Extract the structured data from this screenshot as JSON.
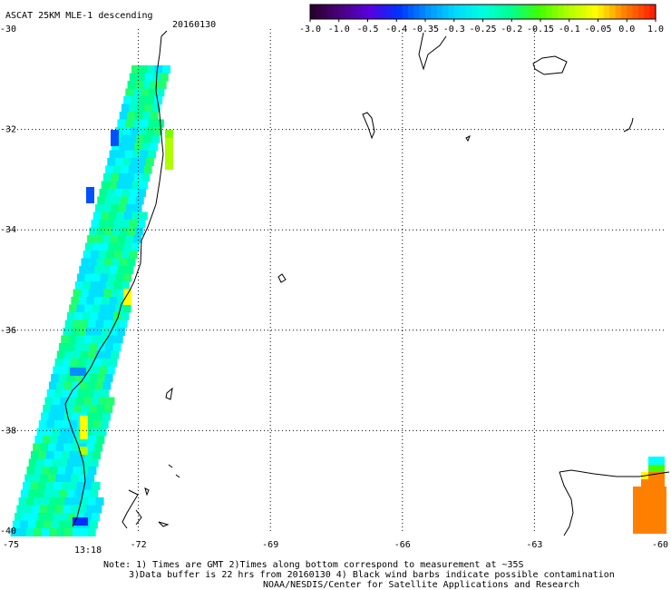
{
  "header": {
    "title": "ASCAT 25KM MLE-1 descending",
    "date": "20160130"
  },
  "colorbar": {
    "labels": [
      "-3.0",
      "-1.0",
      "-0.5",
      "-0.4",
      "-0.35",
      "-0.3",
      "-0.25",
      "-0.2",
      "-0.15",
      "-0.1",
      "-0.05",
      "0.0",
      "1.0"
    ],
    "colors": [
      "#2a0030",
      "#4b0080",
      "#5a00e0",
      "#0030ff",
      "#0090ff",
      "#00d8ff",
      "#00ffe0",
      "#00ff90",
      "#40ff00",
      "#b0ff00",
      "#ffff00",
      "#ff8000",
      "#ff2000"
    ]
  },
  "map": {
    "lon_range": [
      -75,
      -60
    ],
    "lat_range": [
      -40,
      -30
    ],
    "x_tick_labels": [
      "-75",
      "-72",
      "-69",
      "-66",
      "-63",
      "-60"
    ],
    "y_tick_labels": [
      "-30",
      "-32",
      "-34",
      "-36",
      "-38",
      "-40"
    ],
    "grid": "dotted"
  },
  "time_label": {
    "text": "13:18",
    "color": "#cc2200"
  },
  "footer": {
    "line1": "Note: 1) Times are GMT 2)Times along bottom correspond to measurement at ~35S",
    "line2": "3)Data buffer is 22 hrs from 20160130 4) Black wind barbs indicate possible contamination",
    "line3": "NOAA/NESDIS/Center for Satellite Applications and Research"
  }
}
